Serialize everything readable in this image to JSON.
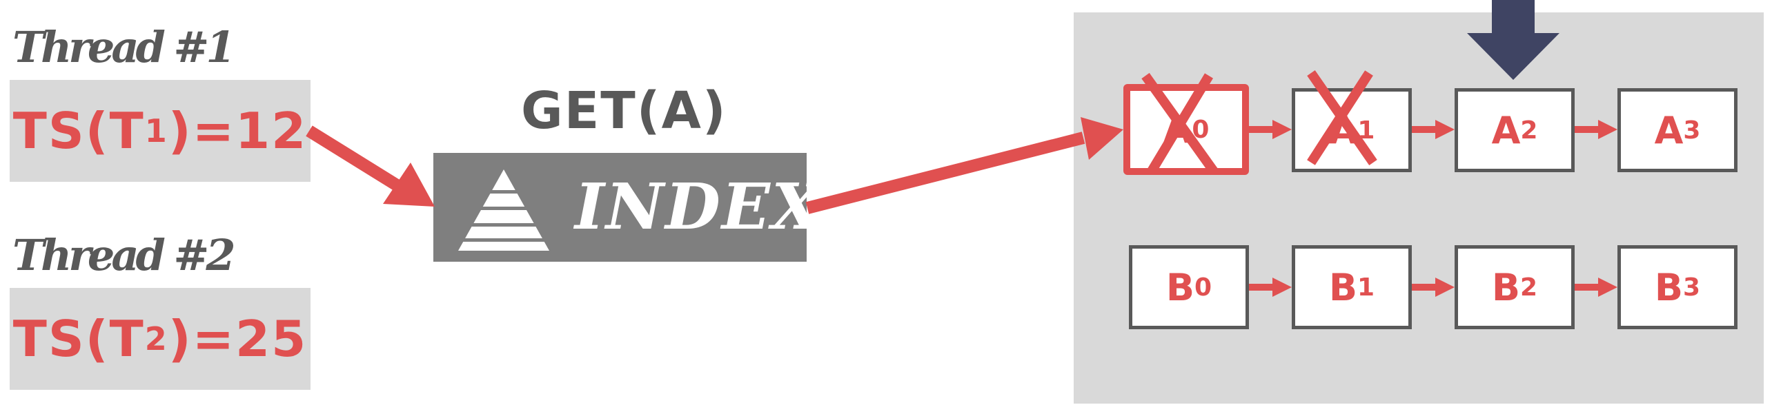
{
  "threads": [
    {
      "label": "Thread #1",
      "ts_prefix": "TS(T",
      "ts_sub": "1",
      "ts_suffix": ")=12"
    },
    {
      "label": "Thread #2",
      "ts_prefix": "TS(T",
      "ts_sub": "2",
      "ts_suffix": ")=25"
    }
  ],
  "operation": "GET(A)",
  "index": {
    "label": "INDEX",
    "icon": "pyramid-icon"
  },
  "version_chains": [
    {
      "nodes": [
        {
          "base": "A",
          "sub": "0",
          "status": "crossed-out"
        },
        {
          "base": "A",
          "sub": "1",
          "status": "crossed-out"
        },
        {
          "base": "A",
          "sub": "2",
          "status": "pointer-target"
        },
        {
          "base": "A",
          "sub": "3",
          "status": "normal"
        }
      ]
    },
    {
      "nodes": [
        {
          "base": "B",
          "sub": "0",
          "status": "normal"
        },
        {
          "base": "B",
          "sub": "1",
          "status": "normal"
        },
        {
          "base": "B",
          "sub": "2",
          "status": "normal"
        },
        {
          "base": "B",
          "sub": "3",
          "status": "normal"
        }
      ]
    }
  ],
  "colors": {
    "accent": "#e05050",
    "dark_gray": "#595959",
    "pointer": "#3f4463",
    "panel": "#d9d9d9",
    "index_bg": "#7f7f7f"
  }
}
